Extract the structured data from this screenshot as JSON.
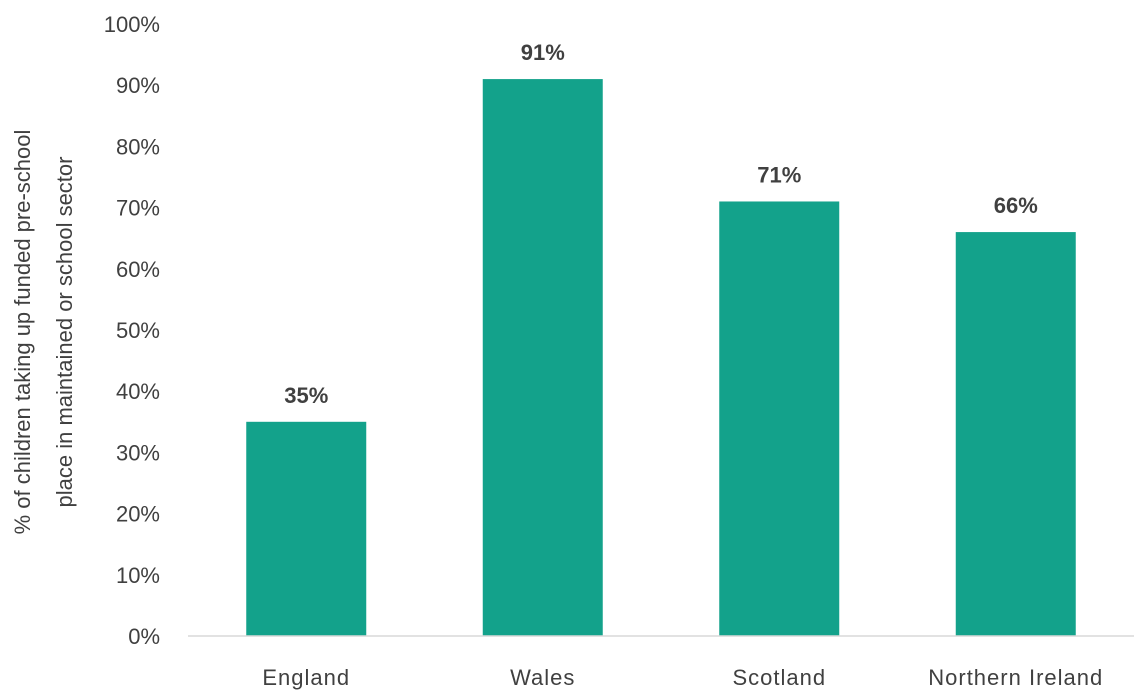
{
  "chart_data": {
    "type": "bar",
    "categories": [
      "England",
      "Wales",
      "Scotland",
      "Northern Ireland"
    ],
    "values": [
      35,
      91,
      71,
      66
    ],
    "data_labels": [
      "35%",
      "91%",
      "71%",
      "66%"
    ],
    "title": "",
    "xlabel": "",
    "ylabel_lines": [
      "% of children taking up funded pre-school",
      "place in maintained or school sector"
    ],
    "ylim": [
      0,
      100
    ],
    "yticks": [
      0,
      10,
      20,
      30,
      40,
      50,
      60,
      70,
      80,
      90,
      100
    ],
    "ytick_labels": [
      "0%",
      "10%",
      "20%",
      "30%",
      "40%",
      "50%",
      "60%",
      "70%",
      "80%",
      "90%",
      "100%"
    ],
    "grid": false,
    "bar_color": "#13A28B",
    "axis_color": "#D9D9D9",
    "text_color": "#404040"
  }
}
